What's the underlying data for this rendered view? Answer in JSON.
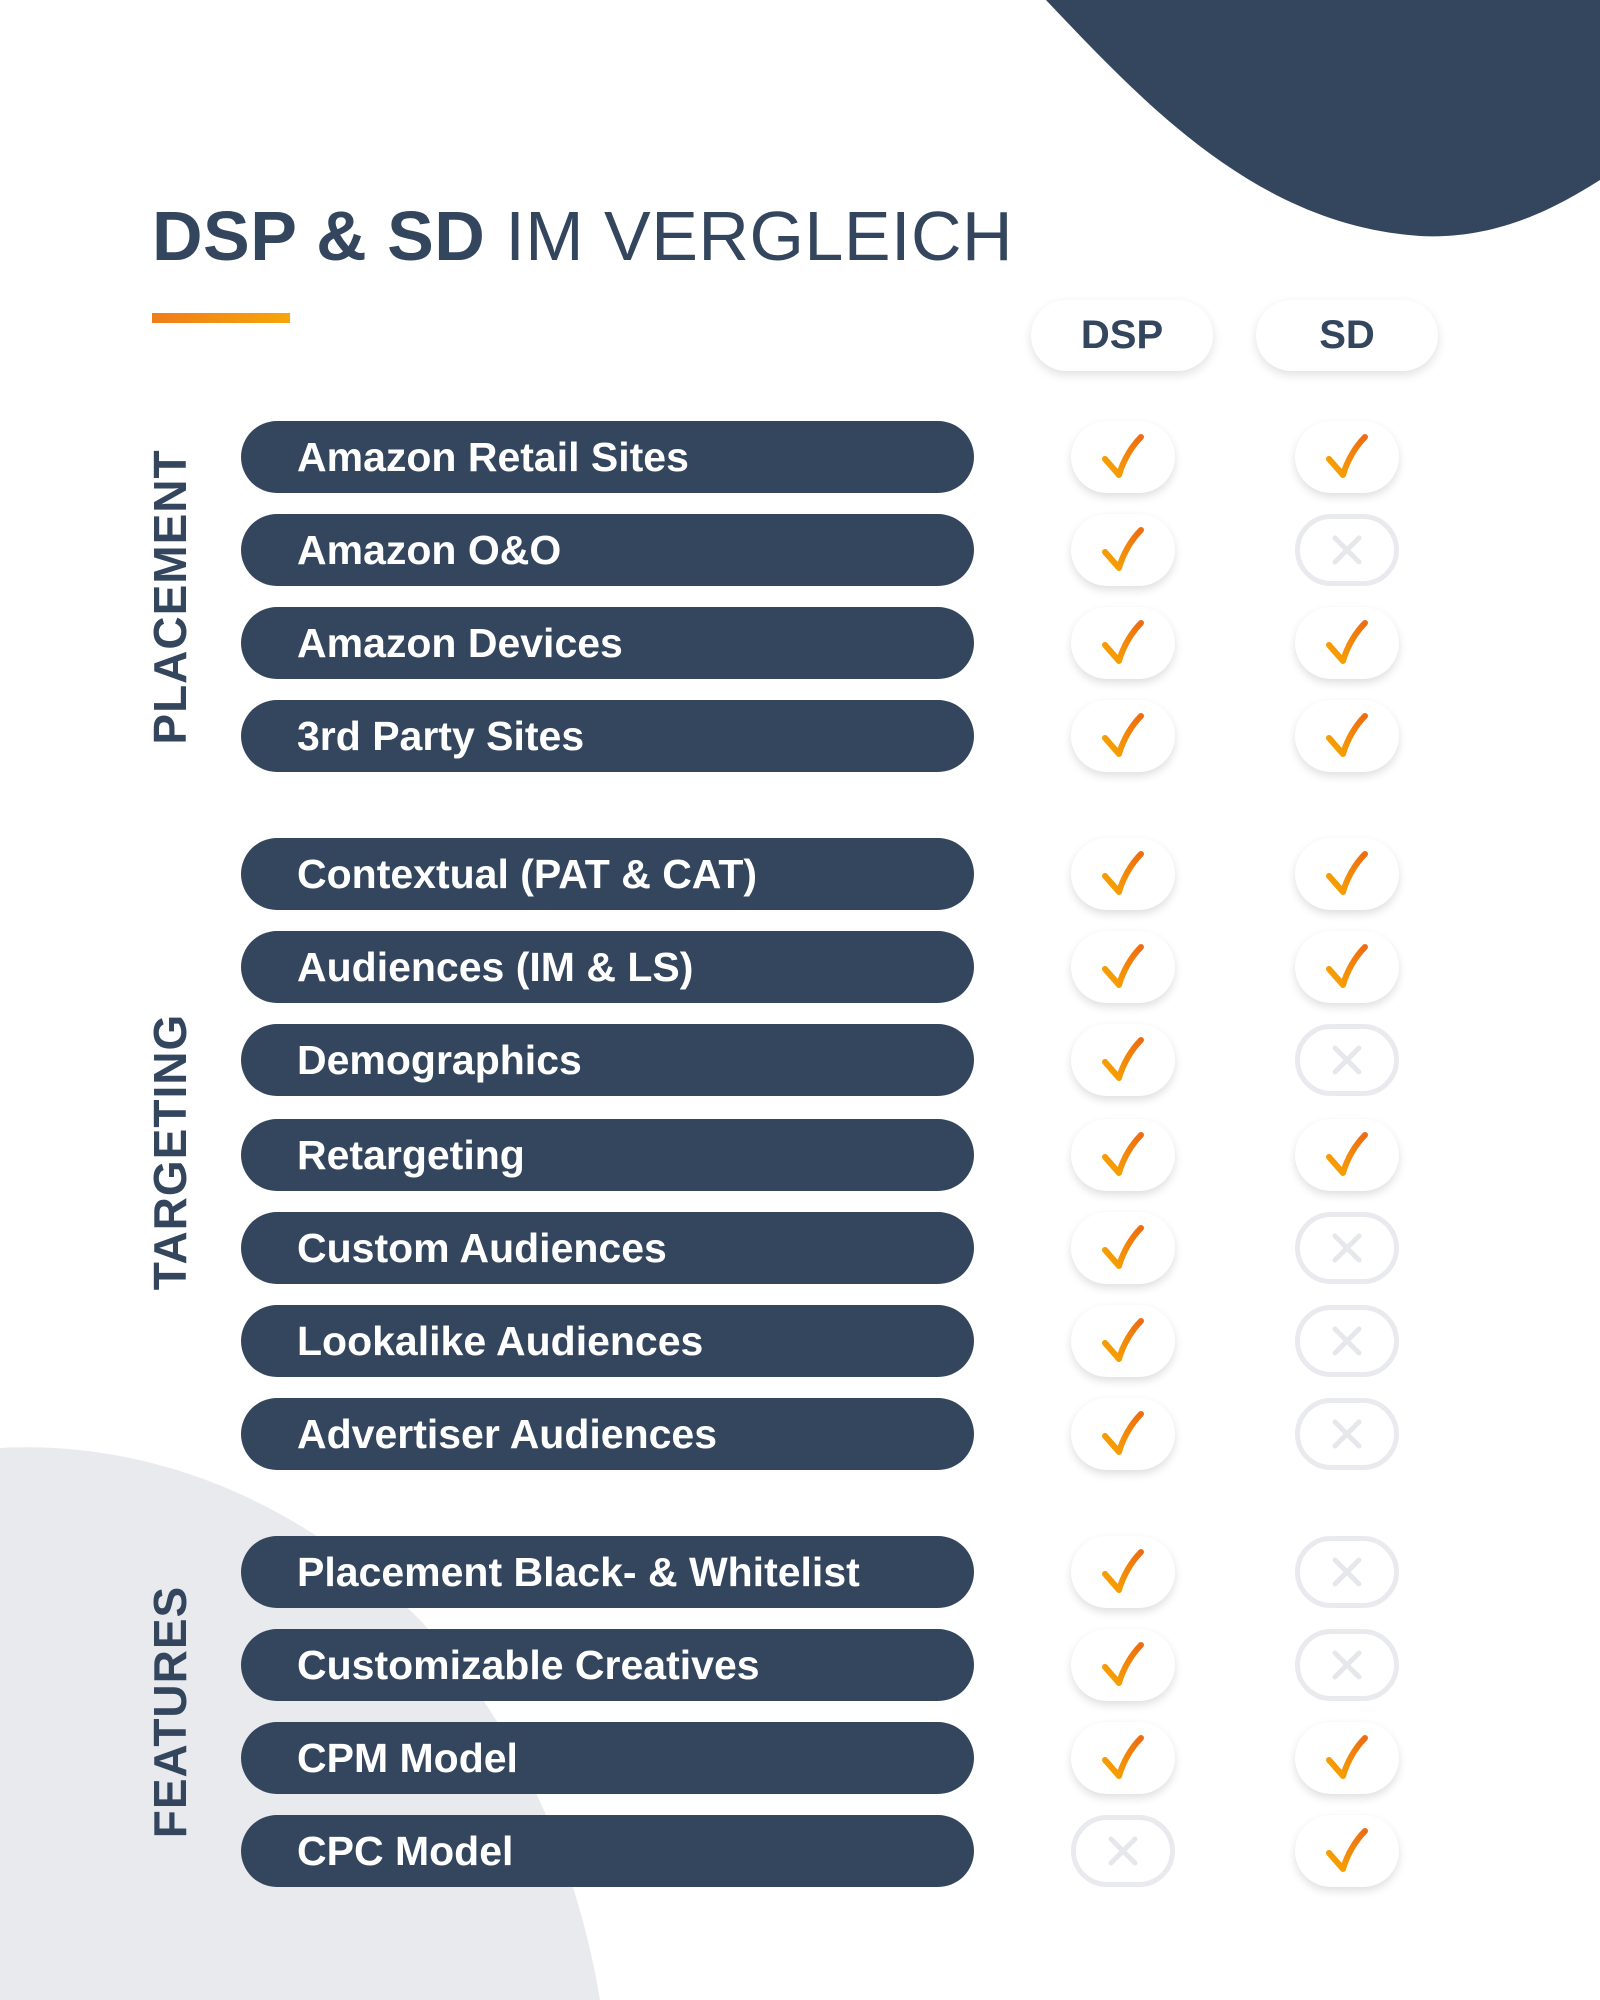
{
  "title": {
    "bold": "DSP & SD",
    "light": "IM VERGLEICH"
  },
  "columns": [
    "DSP",
    "SD"
  ],
  "colors": {
    "navy": "#33465e",
    "orange": "#f5900f",
    "gray_bg": "#e9eaee",
    "cross": "#e6e7eb"
  },
  "groups": [
    {
      "label": "PLACEMENT",
      "rows": [
        {
          "label": "Amazon Retail Sites",
          "dsp": true,
          "sd": true
        },
        {
          "label": "Amazon O&O",
          "dsp": true,
          "sd": false
        },
        {
          "label": "Amazon Devices",
          "dsp": true,
          "sd": true
        },
        {
          "label": "3rd Party Sites",
          "dsp": true,
          "sd": true
        }
      ]
    },
    {
      "label": "TARGETING",
      "rows": [
        {
          "label": "Contextual (PAT & CAT)",
          "dsp": true,
          "sd": true
        },
        {
          "label": "Audiences (IM & LS)",
          "dsp": true,
          "sd": true
        },
        {
          "label": "Demographics",
          "dsp": true,
          "sd": false
        },
        {
          "label": "Retargeting",
          "dsp": true,
          "sd": true
        },
        {
          "label": "Custom Audiences",
          "dsp": true,
          "sd": false
        },
        {
          "label": "Lookalike Audiences",
          "dsp": true,
          "sd": false
        },
        {
          "label": "Advertiser Audiences",
          "dsp": true,
          "sd": false
        }
      ]
    },
    {
      "label": "FEATURES",
      "rows": [
        {
          "label": "Placement Black- & Whitelist",
          "dsp": true,
          "sd": false
        },
        {
          "label": "Customizable Creatives",
          "dsp": true,
          "sd": false
        },
        {
          "label": "CPM Model",
          "dsp": true,
          "sd": true
        },
        {
          "label": "CPC Model",
          "dsp": false,
          "sd": true
        }
      ]
    }
  ]
}
